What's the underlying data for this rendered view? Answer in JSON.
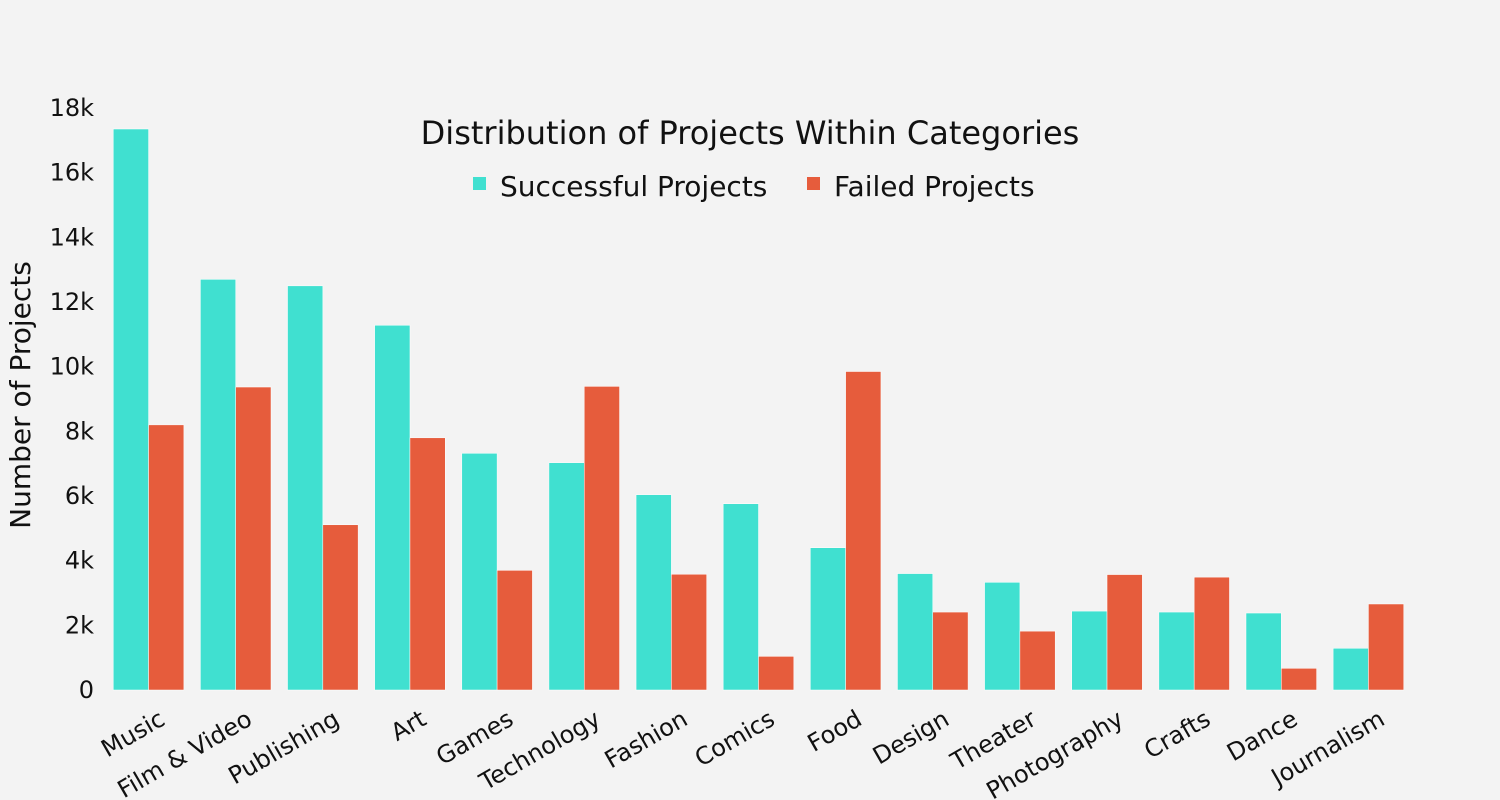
{
  "chart_data": {
    "type": "bar",
    "title": "Distribution of Projects Within Categories",
    "xlabel": "",
    "ylabel": "Number of Projects",
    "ylim": [
      0,
      18000
    ],
    "yticks": [
      0,
      2000,
      4000,
      6000,
      8000,
      10000,
      12000,
      14000,
      16000,
      18000
    ],
    "ytick_labels": [
      "0",
      "2k",
      "4k",
      "6k",
      "8k",
      "10k",
      "12k",
      "14k",
      "16k",
      "18k"
    ],
    "categories": [
      "Music",
      "Film & Video",
      "Publishing",
      "Art",
      "Games",
      "Technology",
      "Fashion",
      "Comics",
      "Food",
      "Design",
      "Theater",
      "Photography",
      "Crafts",
      "Dance",
      "Journalism"
    ],
    "series": [
      {
        "name": "Successful Projects",
        "color": "#40e0d0",
        "values": [
          17350,
          12700,
          12500,
          11280,
          7320,
          7030,
          6040,
          5760,
          4400,
          3600,
          3330,
          2440,
          2410,
          2380,
          1290
        ]
      },
      {
        "name": "Failed Projects",
        "color": "#e65c3c",
        "values": [
          8200,
          9370,
          5110,
          7800,
          3700,
          9390,
          3580,
          1040,
          9850,
          2410,
          1820,
          3570,
          3490,
          670,
          2660
        ]
      }
    ],
    "legend_position": "top-center",
    "grid": false
  }
}
